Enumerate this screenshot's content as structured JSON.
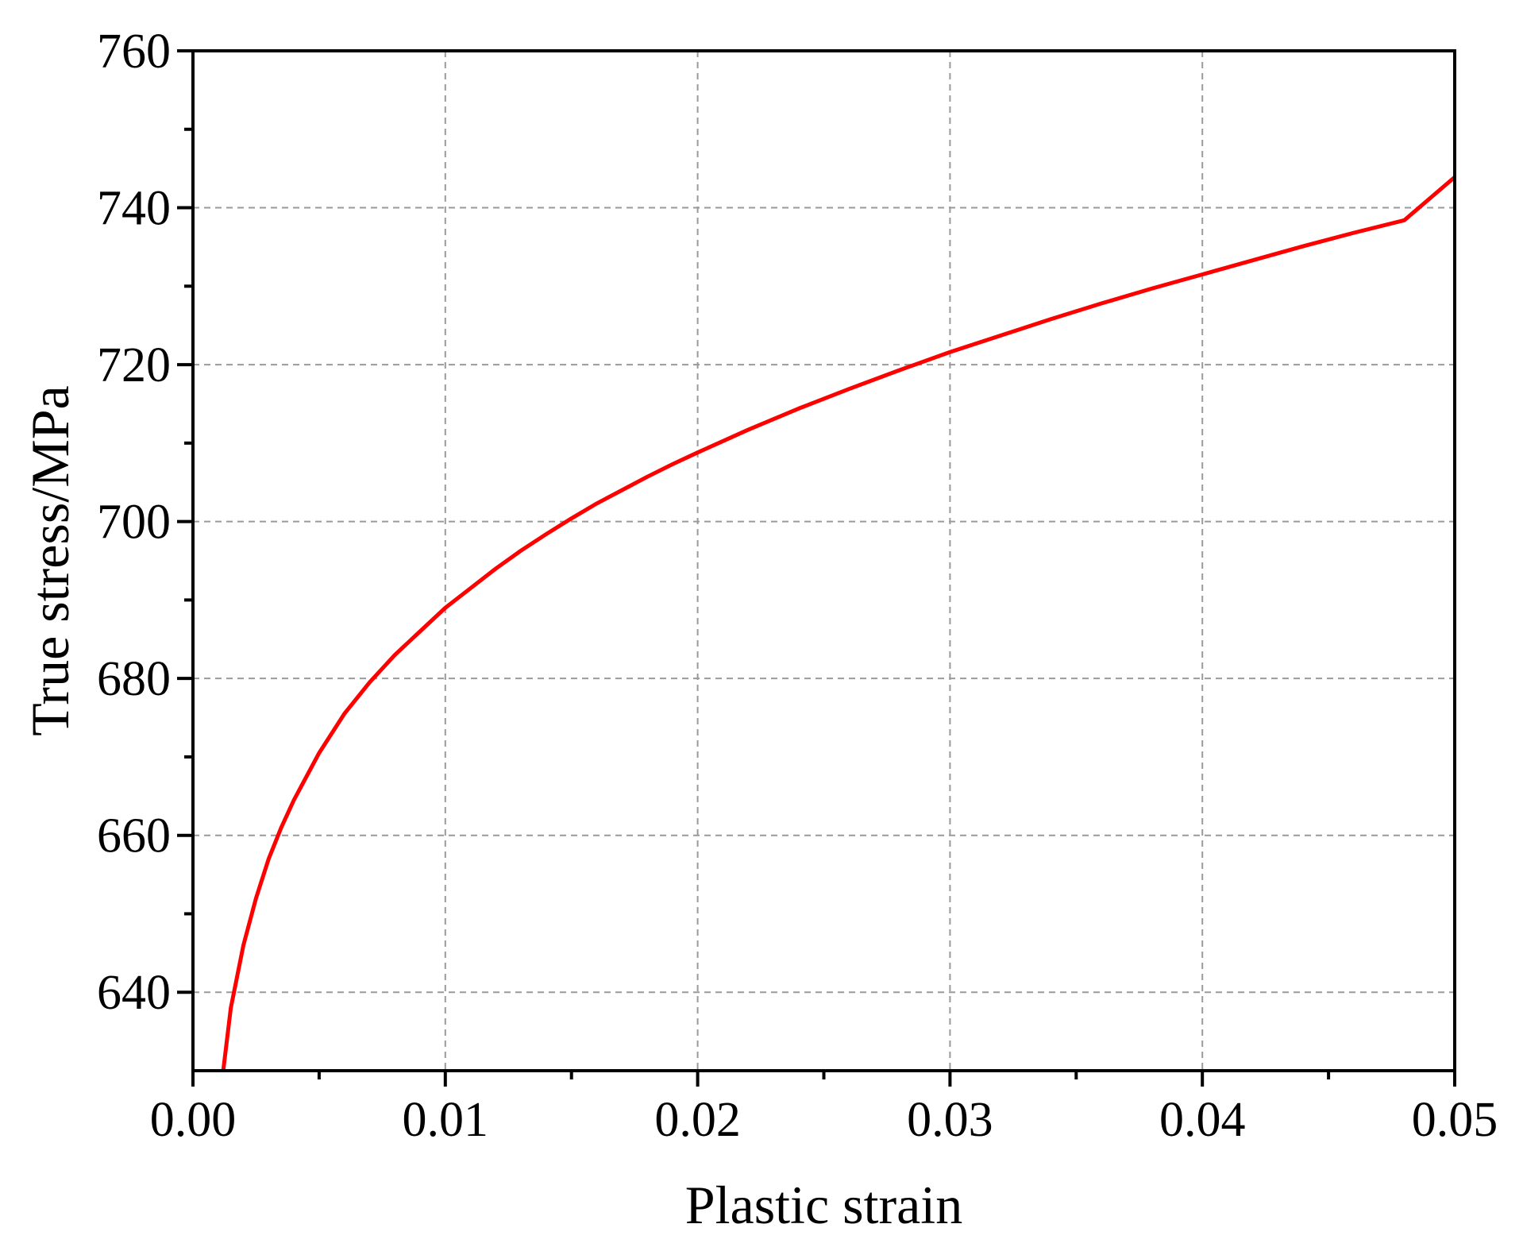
{
  "chart_data": {
    "type": "line",
    "title": "",
    "xlabel": "Plastic strain",
    "ylabel": "True stress/MPa",
    "xlim": [
      0,
      0.05
    ],
    "ylim": [
      630,
      760
    ],
    "x_ticks": [
      0.0,
      0.01,
      0.02,
      0.03,
      0.04,
      0.05
    ],
    "x_tick_labels": [
      "0.00",
      "0.01",
      "0.02",
      "0.03",
      "0.04",
      "0.05"
    ],
    "x_minor_ticks": [
      0.005,
      0.015,
      0.025,
      0.035,
      0.045
    ],
    "y_ticks": [
      640,
      660,
      680,
      700,
      720,
      740,
      760
    ],
    "y_tick_labels": [
      "640",
      "660",
      "680",
      "700",
      "720",
      "740",
      "760"
    ],
    "y_minor_ticks": [
      650,
      670,
      690,
      710,
      730,
      750
    ],
    "grid": true,
    "legend": "none",
    "series": [
      {
        "color": "#ff0000",
        "x": [
          0.0012,
          0.0015,
          0.002,
          0.0025,
          0.003,
          0.0035,
          0.004,
          0.005,
          0.006,
          0.007,
          0.008,
          0.009,
          0.01,
          0.011,
          0.012,
          0.013,
          0.014,
          0.015,
          0.016,
          0.017,
          0.018,
          0.019,
          0.02,
          0.022,
          0.024,
          0.026,
          0.028,
          0.03,
          0.032,
          0.034,
          0.036,
          0.038,
          0.04,
          0.042,
          0.044,
          0.046,
          0.048,
          0.05
        ],
        "y": [
          630,
          638,
          646,
          652,
          657,
          661,
          664.5,
          670.5,
          675.5,
          679.5,
          683,
          686,
          689,
          691.5,
          694,
          696.3,
          698.4,
          700.4,
          702.3,
          704,
          705.7,
          707.3,
          708.8,
          711.7,
          714.4,
          716.9,
          719.3,
          721.6,
          723.7,
          725.8,
          727.8,
          729.7,
          731.5,
          733.3,
          735.1,
          736.8,
          738.4,
          743.9
        ]
      }
    ]
  }
}
